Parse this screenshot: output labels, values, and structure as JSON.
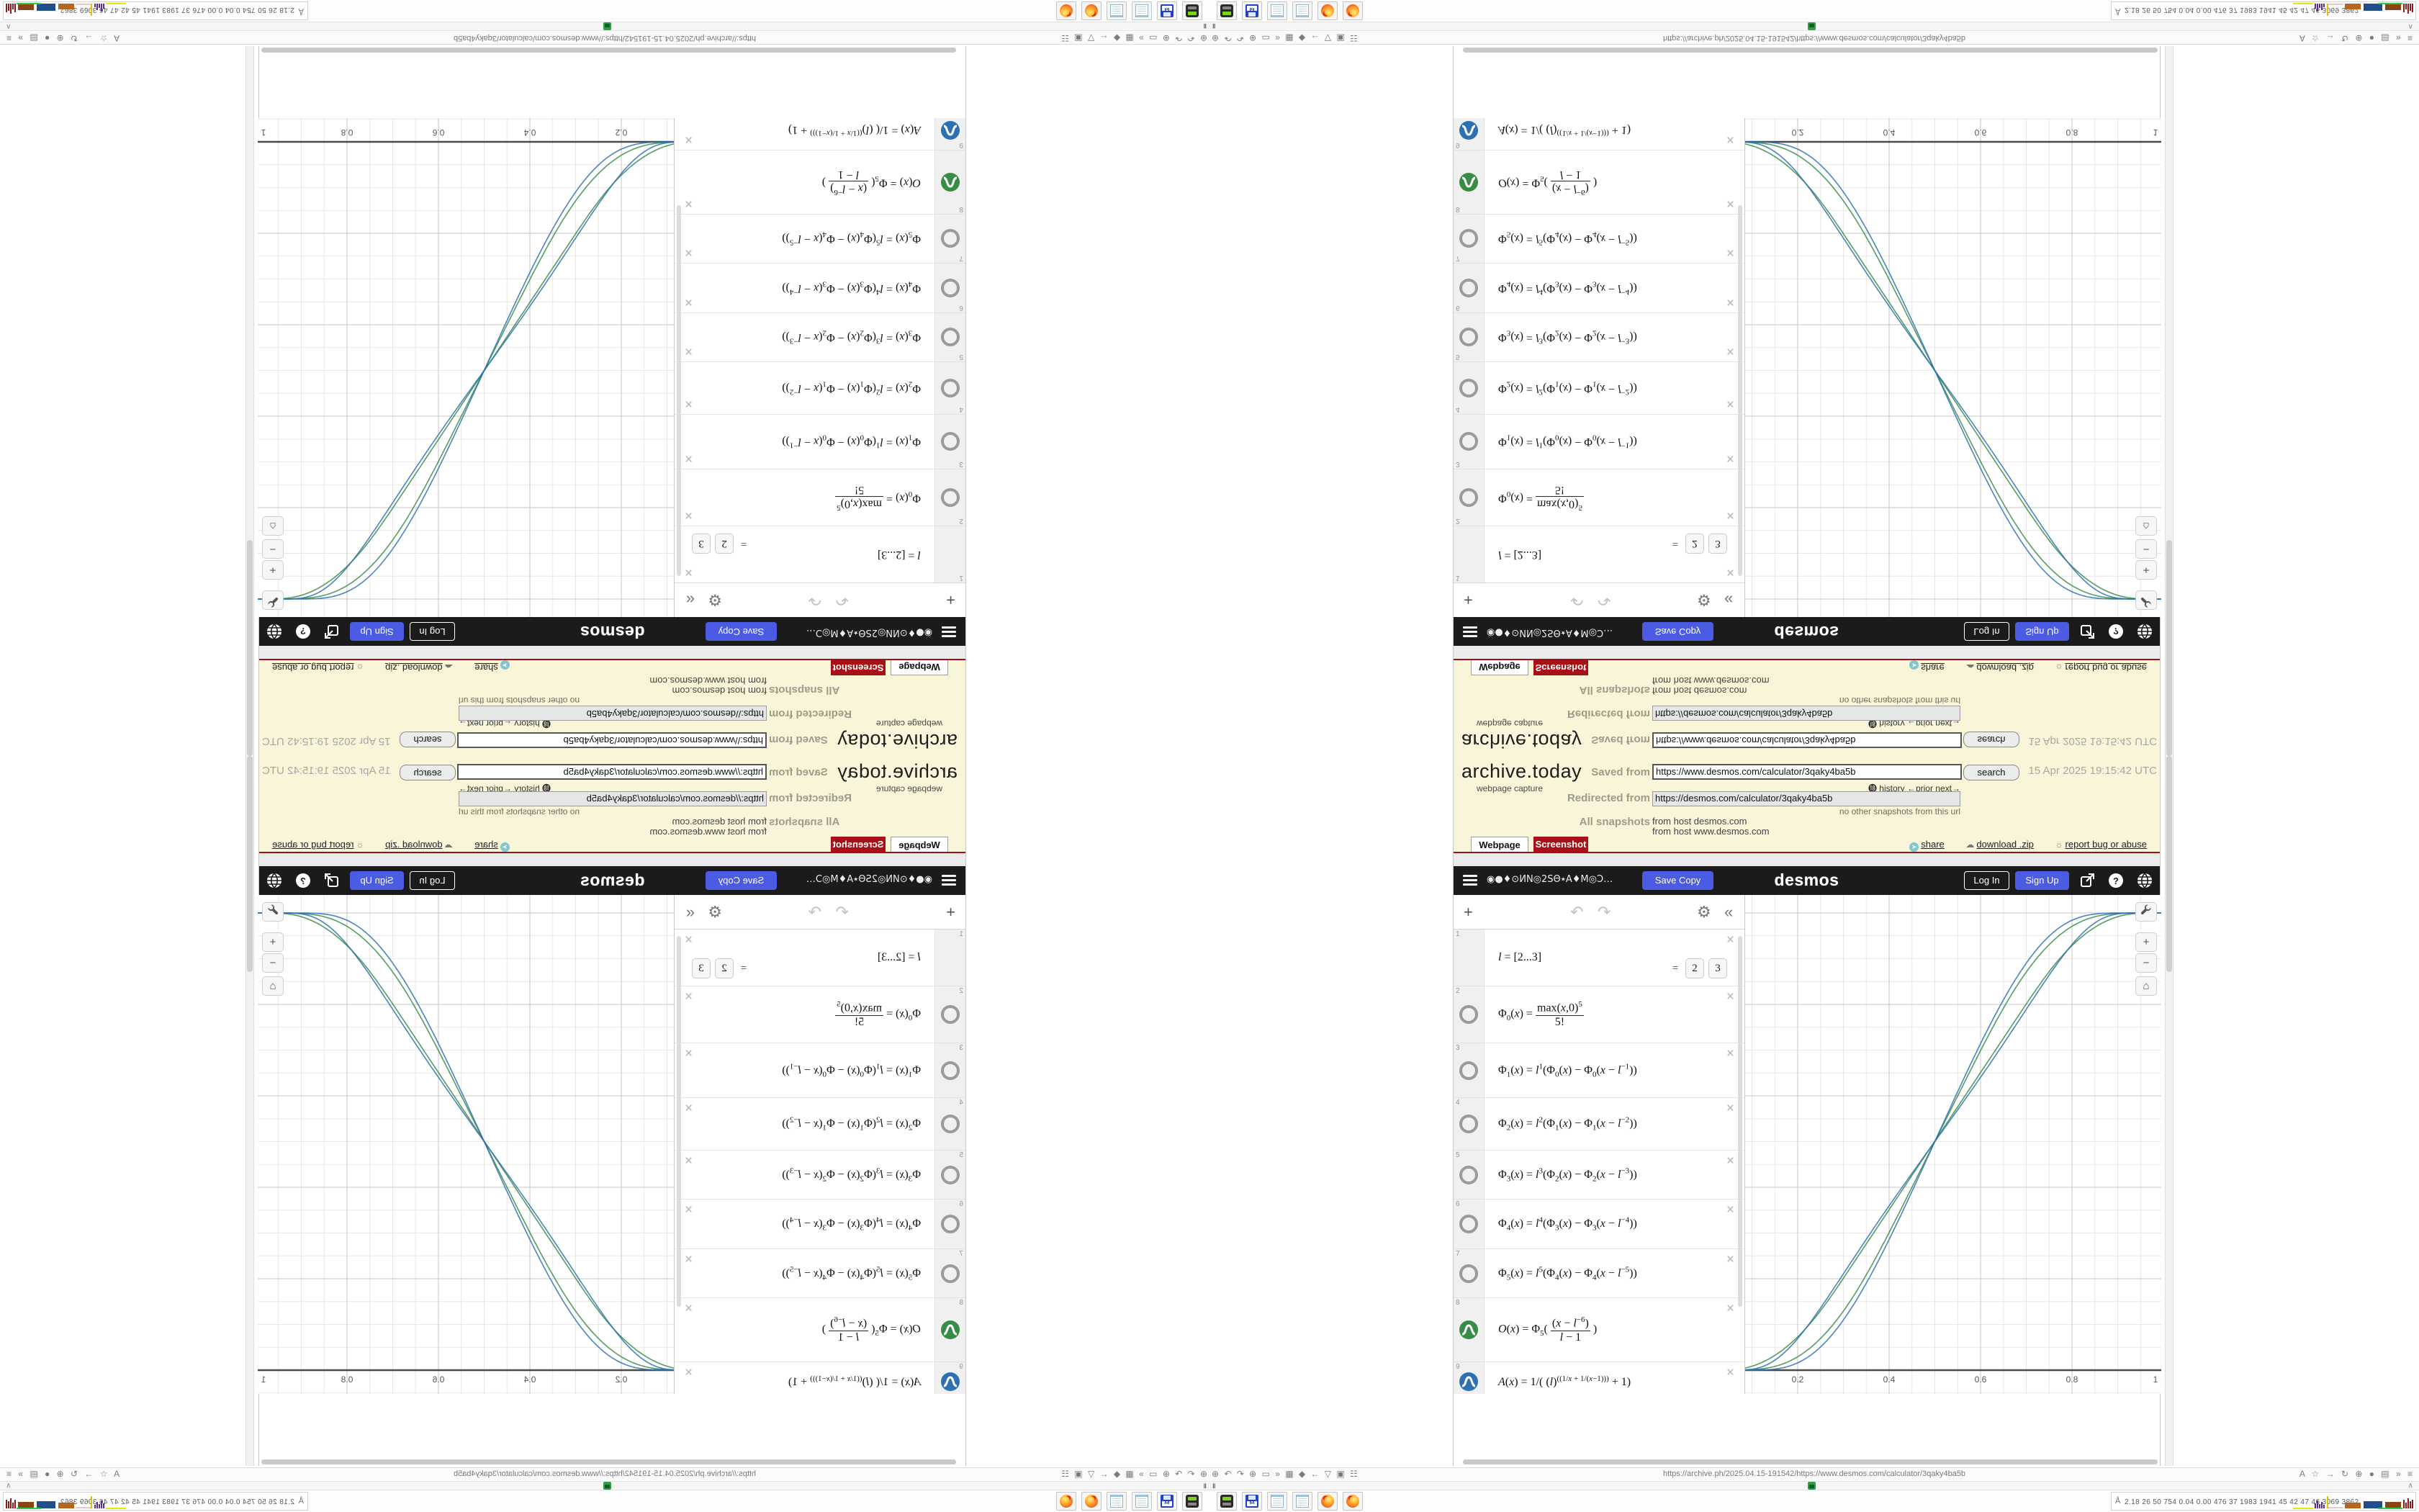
{
  "archive": {
    "logo": "archive.today",
    "tagline": "webpage capture",
    "saved_from_label": "Saved from",
    "saved_url": "https://www.desmos.com/calculator/3qaky4ba5b",
    "search_label": "search",
    "timestamp": "15 Apr 2025 19:15:42 UTC",
    "history_row": "⓲ history  ←prior next→",
    "redirected_from_label": "Redirected from",
    "redirected_url": "https://desmos.com/calculator/3qaky4ba5b",
    "no_other_snapshots": "no other snapshots from this url",
    "all_snapshots_label": "All snapshots",
    "from_host_1": "from host desmos.com",
    "from_host_2": "from host www.desmos.com",
    "tab_webpage": "Webpage",
    "tab_screenshot": "Screenshot",
    "share_label": "share",
    "download_label": "download .zip",
    "report_label": "report bug or abuse"
  },
  "desmos": {
    "title": "◉●♦⊙ИN◎2SΘ٭A♦M◎Ɔ…",
    "save_copy": "Save Copy",
    "wordmark": "desmos",
    "log_in": "Log In",
    "sign_up": "Sign Up"
  },
  "expr_toolbar": {
    "add": "+",
    "undo": "↶",
    "redo": "↷",
    "gear": "⚙",
    "collapse": "«"
  },
  "expressions": [
    {
      "n": "1",
      "icon": "none",
      "h": 78,
      "html": "<i>l</i> = [2...3]",
      "chips": [
        "2",
        "3"
      ]
    },
    {
      "n": "2",
      "icon": "circle",
      "h": 78,
      "html": "Φ<sub>0</sub>(<i>x</i>) = <span class='frac'><span>max(<i>x</i>,0)<sup>5</sup></span><span>5!</span></span>"
    },
    {
      "n": "3",
      "icon": "circle",
      "h": 75,
      "html": "Φ<sub>1</sub>(<i>x</i>) = <i>l</i><sup>1</sup>(Φ<sub>0</sub>(<i>x</i>) − Φ<sub>0</sub>(<i>x</i> − <i>l</i><sup>−1</sup>))"
    },
    {
      "n": "4",
      "icon": "circle",
      "h": 72,
      "html": "Φ<sub>2</sub>(<i>x</i>) = <i>l</i><sup>2</sup>(Φ<sub>1</sub>(<i>x</i>) − Φ<sub>1</sub>(<i>x</i> − <i>l</i><sup>−2</sup>))"
    },
    {
      "n": "5",
      "icon": "circle",
      "h": 67,
      "html": "Φ<sub>3</sub>(<i>x</i>) = <i>l</i><sup>3</sup>(Φ<sub>2</sub>(<i>x</i>) − Φ<sub>2</sub>(<i>x</i> − <i>l</i><sup>−3</sup>))"
    },
    {
      "n": "6",
      "icon": "circle",
      "h": 68,
      "html": "Φ<sub>4</sub>(<i>x</i>) = <i>l</i><sup>4</sup>(Φ<sub>3</sub>(<i>x</i>) − Φ<sub>3</sub>(<i>x</i> − <i>l</i><sup>−4</sup>))"
    },
    {
      "n": "7",
      "icon": "circle",
      "h": 67,
      "html": "Φ<sub>5</sub>(<i>x</i>) = <i>l</i><sup>5</sup>(Φ<sub>4</sub>(<i>x</i>) − Φ<sub>4</sub>(<i>x</i> − <i>l</i><sup>−5</sup>))"
    },
    {
      "n": "8",
      "icon": "green",
      "h": 88,
      "html": "<i>O</i>(<i>x</i>) = Φ<sub>5</sub>( <span class='frac'><span>(<i>x</i> − <i>l</i><sup>−6</sup>)</span><span><i>l</i> − 1</span></span> )"
    },
    {
      "n": "9",
      "icon": "blue",
      "h": 53,
      "html": "<i>A</i>(<i>x</i>) = 1/( (<i>l</i>)<sup>((1/<i>x</i> + 1/(<i>x</i>−1)))</sup> + 1)"
    }
  ],
  "chart_data": {
    "type": "line",
    "title": "",
    "xlabel": "",
    "ylabel": "",
    "xlim": [
      0.085,
      0.995
    ],
    "ylim": [
      -0.052,
      1.039
    ],
    "xticks": [
      0.2,
      0.4,
      0.6,
      0.8,
      1
    ],
    "grid": {
      "minor_step": 0.05,
      "major_step": 0.2
    },
    "axis_color": "#4a4a4a",
    "definitions": {
      "l": "[2...3]",
      "Phi0": "Φ0(x) = max(x,0)^5/5!",
      "PhiK": "Φk(x) = l^k(Φk−1(x) − Φk−1(x − l^−k)), k=1..5",
      "O": "O(x) = Φ5((x − l^−6)/(l − 1))",
      "A": "A(x) = 1/(l^((1/x + 1/(x−1))) + 1)"
    },
    "series": [
      {
        "name": "O(x), l=2",
        "fn": "O",
        "l": 2,
        "color": "#388c46"
      },
      {
        "name": "O(x), l=3",
        "fn": "O",
        "l": 3,
        "color": "#388c46"
      },
      {
        "name": "A(x), l=2",
        "fn": "A",
        "l": 2,
        "color": "#2d70b3"
      },
      {
        "name": "A(x), l=3",
        "fn": "A",
        "l": 3,
        "color": "#2d70b3"
      }
    ],
    "key_points": "all four sigmoid curves pass through (0.5, 0.5), rising from (0,0) to (1,1)"
  },
  "graph_controls": {
    "wrench": "⚒",
    "zoom_in": "+",
    "zoom_out": "−",
    "home": "⌂"
  },
  "browser": {
    "url": "https://archive.ph/2025.04.15-191542/https://www.desmos.com/calculator/3qaky4ba5b",
    "left_icons": "⊕ ↶ ↷ ⊕ ▭ » ▦ ◆ ← ▽ ▣ ☷",
    "right_icons": "A ☆ → ↻ ⊕ ● ▤ » ≡",
    "pause_marks": "‖",
    "chevron": "∧"
  },
  "tray": {
    "glyph": "Å",
    "stats": "2.18  26  50  754  0.04 0.00  476  37  1983 1941  45   42   47   46  3069 3862"
  }
}
